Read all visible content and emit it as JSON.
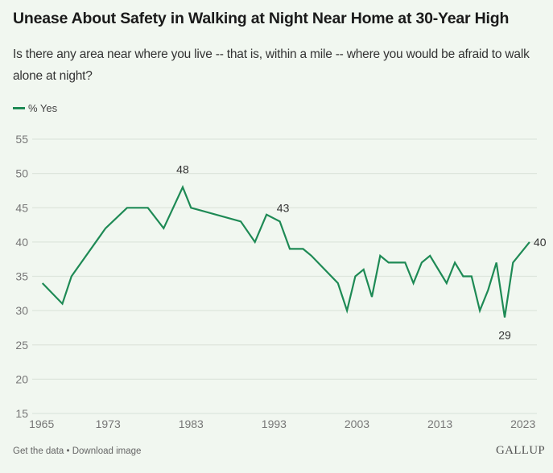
{
  "header": {
    "title": "Unease About Safety in Walking at Night Near Home at 30-Year High",
    "subtitle": "Is there any area near where you live -- that is, within a mile -- where you would be afraid to walk alone at night?"
  },
  "footer": {
    "get_data": "Get the data",
    "separator": "•",
    "download_image": "Download image",
    "logo": "GALLUP"
  },
  "colors": {
    "series": "#1e8a55",
    "background": "#f1f7f0",
    "grid": "#dde5dc"
  },
  "chart_data": {
    "type": "line",
    "title": "Unease About Safety in Walking at Night Near Home at 30-Year High",
    "subtitle": "Is there any area near where you live -- that is, within a mile -- where you would be afraid to walk alone at night?",
    "xlabel": "",
    "ylabel": "",
    "xlim": [
      1965,
      2023
    ],
    "ylim": [
      15,
      55
    ],
    "xticks": [
      1965,
      1973,
      1983,
      1993,
      2003,
      2013,
      2023
    ],
    "yticks": [
      15,
      20,
      25,
      30,
      35,
      40,
      45,
      50,
      55
    ],
    "grid": true,
    "legend": {
      "placement": "top-left",
      "entries": [
        "% Yes"
      ]
    },
    "series": [
      {
        "name": "% Yes",
        "x": [
          1965.1,
          1967.5,
          1968.6,
          1972.7,
          1975.3,
          1977.8,
          1979.7,
          1982.0,
          1983.0,
          1989.0,
          1990.7,
          1992.1,
          1993.7,
          1994.9,
          1996.5,
          1997.5,
          2000.7,
          2001.8,
          2002.8,
          2003.8,
          2004.8,
          2005.8,
          2006.8,
          2008.8,
          2009.8,
          2010.8,
          2011.8,
          2013.8,
          2014.8,
          2015.8,
          2016.8,
          2017.8,
          2018.8,
          2019.8,
          2020.8,
          2021.8,
          2023.8
        ],
        "values": [
          34,
          31,
          35,
          42,
          45,
          45,
          42,
          48,
          45,
          43,
          40,
          44,
          43,
          39,
          39,
          38,
          34,
          30,
          35,
          36,
          32,
          38,
          37,
          37,
          34,
          37,
          38,
          34,
          37,
          35,
          35,
          30,
          33,
          37,
          29,
          37,
          40
        ]
      }
    ],
    "annotations": [
      {
        "text": "48",
        "x": 1982.0,
        "y": 48,
        "position": "above"
      },
      {
        "text": "43",
        "x": 1993.7,
        "y": 43,
        "position": "above-right"
      },
      {
        "text": "29",
        "x": 2020.8,
        "y": 29,
        "position": "below"
      },
      {
        "text": "40",
        "x": 2023.8,
        "y": 40,
        "position": "right"
      }
    ]
  }
}
